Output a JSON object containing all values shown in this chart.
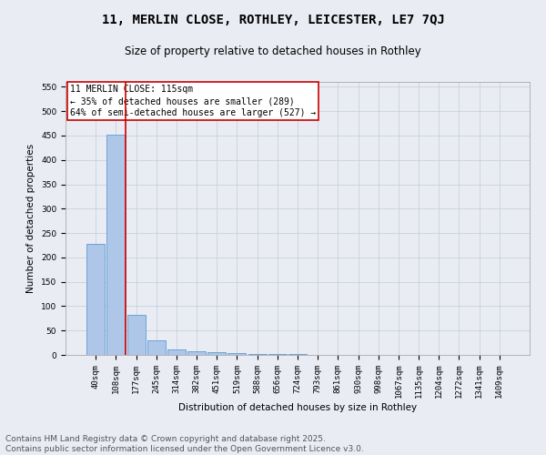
{
  "title1": "11, MERLIN CLOSE, ROTHLEY, LEICESTER, LE7 7QJ",
  "title2": "Size of property relative to detached houses in Rothley",
  "xlabel": "Distribution of detached houses by size in Rothley",
  "ylabel": "Number of detached properties",
  "categories": [
    "40sqm",
    "108sqm",
    "177sqm",
    "245sqm",
    "314sqm",
    "382sqm",
    "451sqm",
    "519sqm",
    "588sqm",
    "656sqm",
    "724sqm",
    "793sqm",
    "861sqm",
    "930sqm",
    "998sqm",
    "1067sqm",
    "1135sqm",
    "1204sqm",
    "1272sqm",
    "1341sqm",
    "1409sqm"
  ],
  "values": [
    228,
    452,
    82,
    30,
    12,
    8,
    5,
    4,
    2,
    1,
    1,
    0,
    0,
    0,
    0,
    0,
    0,
    0,
    0,
    0,
    0
  ],
  "bar_color": "#aec6e8",
  "bar_edge_color": "#5b9bd5",
  "vline_color": "#cc0000",
  "annotation_text": "11 MERLIN CLOSE: 115sqm\n← 35% of detached houses are smaller (289)\n64% of semi-detached houses are larger (527) →",
  "annotation_box_color": "#ffffff",
  "annotation_box_edge_color": "#cc0000",
  "ylim": [
    0,
    560
  ],
  "yticks": [
    0,
    50,
    100,
    150,
    200,
    250,
    300,
    350,
    400,
    450,
    500,
    550
  ],
  "grid_color": "#c8d0de",
  "background_color": "#eaecf4",
  "footer_text": "Contains HM Land Registry data © Crown copyright and database right 2025.\nContains public sector information licensed under the Open Government Licence v3.0.",
  "title1_fontsize": 10,
  "title2_fontsize": 8.5,
  "annotation_fontsize": 7,
  "footer_fontsize": 6.5,
  "ylabel_fontsize": 7.5,
  "xlabel_fontsize": 7.5,
  "tick_fontsize": 6.5
}
